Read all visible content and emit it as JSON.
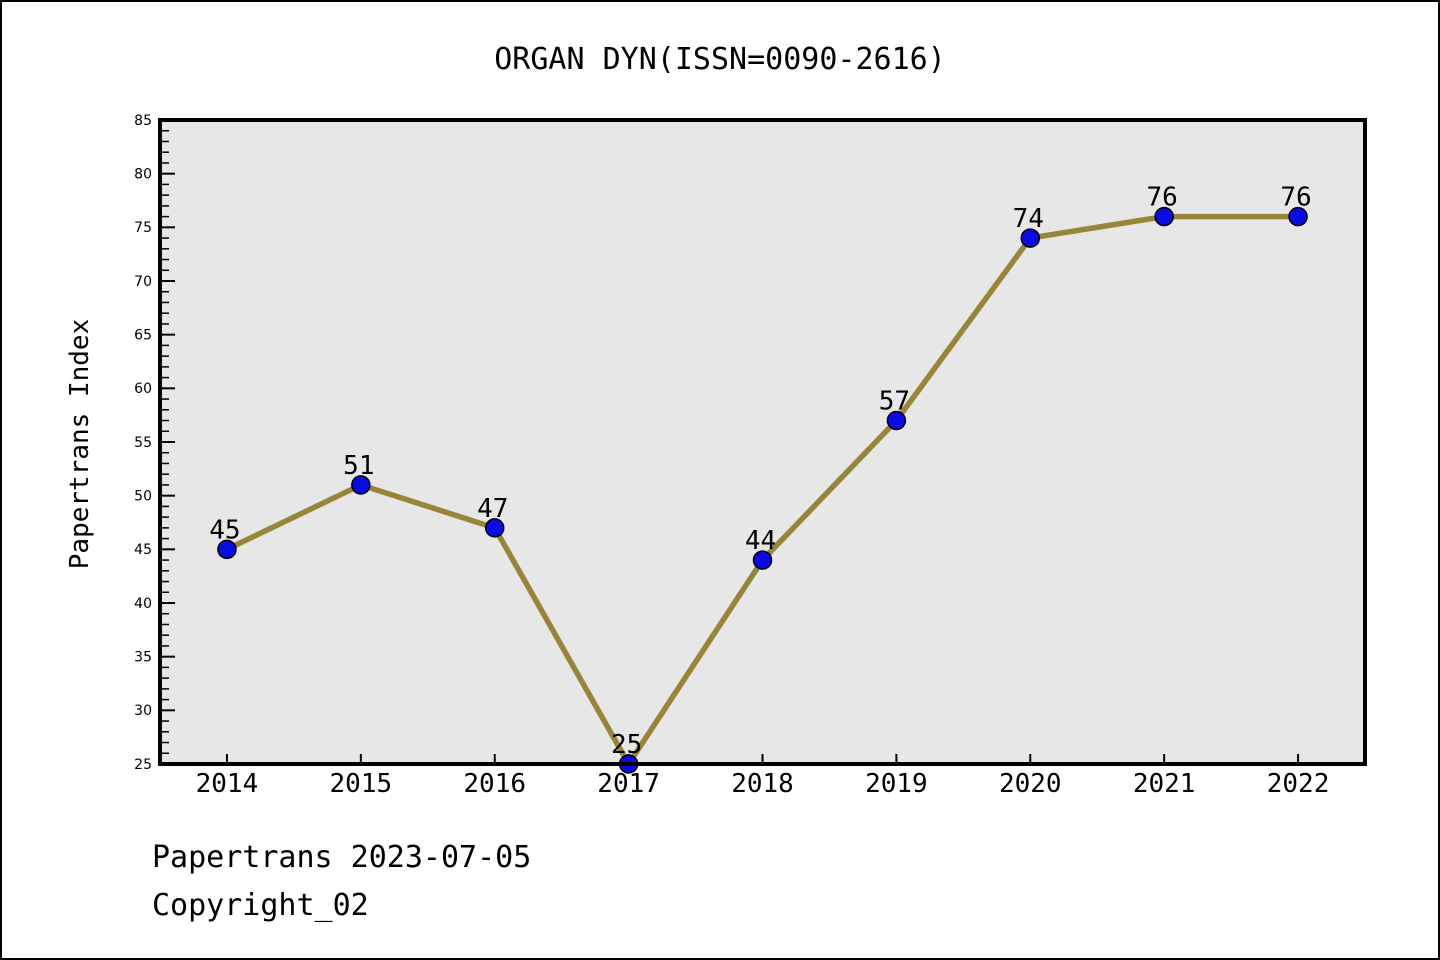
{
  "window": {
    "background": "#ffffff",
    "border_color": "#000000"
  },
  "chart_data": {
    "type": "line",
    "title": "ORGAN DYN(ISSN=0090-2616)",
    "ylabel": "Papertrans Index",
    "xlabel": "",
    "categories": [
      "2014",
      "2015",
      "2016",
      "2017",
      "2018",
      "2019",
      "2020",
      "2021",
      "2022"
    ],
    "series": [
      {
        "name": "Papertrans Index",
        "values": [
          45,
          51,
          47,
          25,
          44,
          57,
          74,
          76,
          76
        ]
      }
    ],
    "point_labels": [
      "45",
      "51",
      "47",
      "25",
      "44",
      "57",
      "74",
      "76",
      "76"
    ],
    "ylim": [
      25,
      85
    ],
    "y_major_step": 5,
    "y_minor_step": 1,
    "grid": false,
    "legend_position": "none",
    "styles": {
      "line_color": "#998538",
      "marker_color": "#0a0ae6",
      "marker_edge_color": "#000000",
      "plot_background": "#e7e7e7",
      "axis_color": "#000000",
      "text_color": "#000000"
    }
  },
  "footer": {
    "line1": "Papertrans 2023-07-05",
    "line2": "Copyright_02"
  }
}
